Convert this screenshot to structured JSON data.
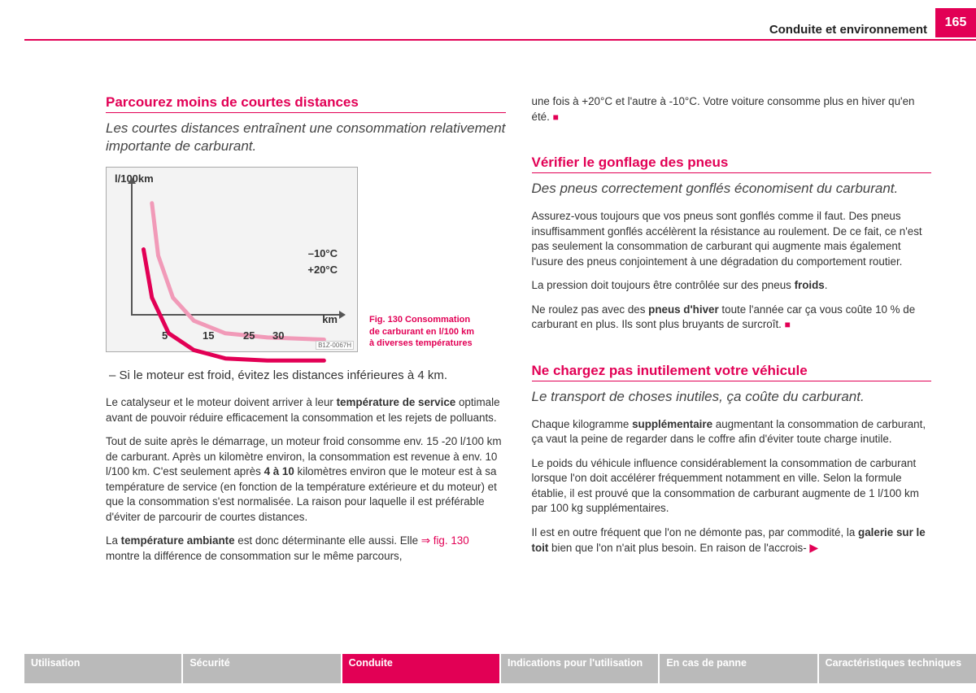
{
  "header": {
    "chapter": "Conduite et environnement",
    "page_num": "165"
  },
  "left": {
    "h1": "Parcourez moins de courtes distances",
    "sub1": "Les courtes distances entraînent une consommation relativement importante de carburant.",
    "chart": {
      "type": "line",
      "ylabel": "l/100km",
      "xlabel": "km",
      "xticks": [
        "5",
        "15",
        "25",
        "30"
      ],
      "series": [
        {
          "label": "–10°C",
          "color": "#f19ab8",
          "width": 5,
          "points": [
            [
              0.1,
              0.1
            ],
            [
              0.13,
              0.35
            ],
            [
              0.2,
              0.55
            ],
            [
              0.3,
              0.66
            ],
            [
              0.45,
              0.72
            ],
            [
              0.65,
              0.74
            ],
            [
              0.92,
              0.75
            ]
          ]
        },
        {
          "label": "+20°C",
          "color": "#e20055",
          "width": 5,
          "points": [
            [
              0.06,
              0.32
            ],
            [
              0.1,
              0.55
            ],
            [
              0.18,
              0.72
            ],
            [
              0.3,
              0.8
            ],
            [
              0.45,
              0.84
            ],
            [
              0.65,
              0.85
            ],
            [
              0.92,
              0.85
            ]
          ]
        }
      ],
      "label_minus10": "–10°C",
      "label_plus20": "+20°C",
      "code": "B1Z-0067H",
      "background": "#f3f3f3",
      "axis_color": "#555555"
    },
    "caption_prefix": "Fig. 130",
    "caption_rest": "  Consommation de carburant en l/100 km à diverses températures",
    "bullet": "–   Si le moteur est froid, évitez les distances inférieures à 4 km.",
    "p1a": "Le catalyseur et le moteur doivent arriver à leur ",
    "p1b": "température de service",
    "p1c": " optimale avant de pouvoir réduire efficacement la consommation et les rejets de polluants.",
    "p2a": "Tout de suite après le démarrage, un moteur froid consomme env. 15 -20 l/100 km de carburant. Après un kilomètre environ, la consommation est revenue à env. 10 l/100 km. C'est seulement après ",
    "p2b": "4 à 10",
    "p2c": " kilomètres environ que le moteur est à sa température de service (en fonction de la température extérieure et du moteur) et que la consommation s'est normalisée. La raison pour laquelle il est préférable d'éviter de parcourir de courtes distances.",
    "p3a": "La ",
    "p3b": "température ambiante",
    "p3c": " est donc déterminante elle aussi. Elle ",
    "p3ref": "⇒ fig. 130",
    "p3d": " montre la différence de consommation sur le même parcours,"
  },
  "right": {
    "r0": "une fois à +20°C et l'autre à -10°C. Votre voiture consomme plus en hiver qu'en été. ",
    "h2": "Vérifier le gonflage des pneus",
    "sub2": "Des pneus correctement gonflés économisent du carburant.",
    "p4": "Assurez-vous toujours que vos pneus sont gonflés comme il faut. Des pneus insuffisamment gonflés accélèrent la résistance au roulement. De ce fait, ce n'est pas seulement la consommation de carburant qui augmente mais également l'usure des pneus conjointement à une dégradation du comportement routier.",
    "p5a": "La pression doit toujours être contrôlée sur des pneus ",
    "p5b": "froids",
    "p5c": ".",
    "p6a": "Ne roulez pas avec des ",
    "p6b": "pneus d'hiver",
    "p6c": " toute l'année car ça vous coûte 10 % de carburant en plus. Ils sont plus bruyants de surcroît. ",
    "h3": "Ne chargez pas inutilement votre véhicule",
    "sub3": "Le transport de choses inutiles, ça coûte du carburant.",
    "p7a": "Chaque kilogramme ",
    "p7b": "supplémentaire",
    "p7c": " augmentant la consommation de carburant, ça vaut la peine de regarder dans le coffre afin d'éviter toute charge inutile.",
    "p8": "Le poids du véhicule influence considérablement la consommation de carburant lorsque l'on doit accélérer fréquemment notamment en ville. Selon la formule établie, il est prouvé que la consommation de carburant augmente de 1 l/100 km par 100 kg supplémentaires.",
    "p9a": "Il est en outre fréquent que l'on ne démonte pas, par commodité, la ",
    "p9b": "galerie sur le toit",
    "p9c": " bien que l'on n'ait plus besoin. En raison de l'accrois- "
  },
  "tabs": [
    {
      "label": "Utilisation",
      "active": false
    },
    {
      "label": "Sécurité",
      "active": false
    },
    {
      "label": "Conduite",
      "active": true
    },
    {
      "label": "Indications pour l'utilisation",
      "active": false
    },
    {
      "label": "En cas de panne",
      "active": false
    },
    {
      "label": "Caractéristiques techniques",
      "active": false
    }
  ]
}
